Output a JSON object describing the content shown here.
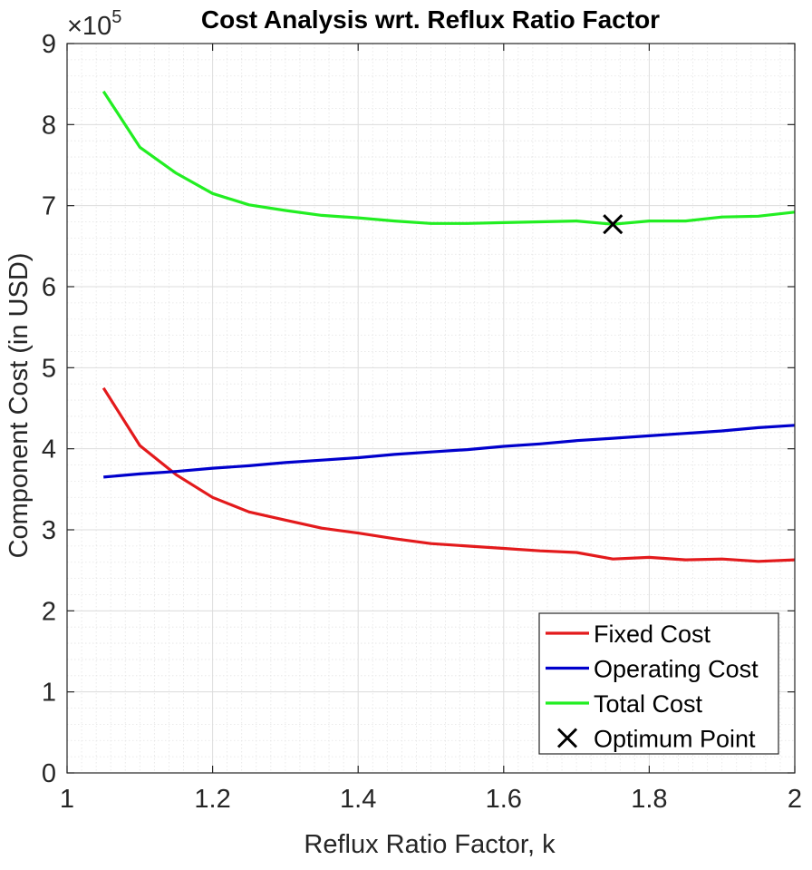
{
  "chart_data": {
    "type": "line",
    "title": "Cost Analysis wrt. Reflux Ratio Factor",
    "xlabel": "Reflux Ratio Factor, k",
    "ylabel": "Component Cost (in USD)",
    "y_exponent_label": "×10",
    "y_exponent_power": "5",
    "xlim": [
      1,
      2
    ],
    "ylim": [
      0,
      9
    ],
    "x_ticks": [
      "1",
      "1.2",
      "1.4",
      "1.6",
      "1.8",
      "2"
    ],
    "y_ticks": [
      "0",
      "1",
      "2",
      "3",
      "4",
      "5",
      "6",
      "7",
      "8",
      "9"
    ],
    "grid": true,
    "minor_grid": true,
    "legend_position": "bottom-right",
    "x": [
      1.05,
      1.1,
      1.15,
      1.2,
      1.25,
      1.3,
      1.35,
      1.4,
      1.45,
      1.5,
      1.55,
      1.6,
      1.65,
      1.7,
      1.75,
      1.8,
      1.85,
      1.9,
      1.95,
      2.0
    ],
    "series": [
      {
        "name": "Fixed Cost",
        "color": "#e31a1c",
        "values": [
          4.75,
          4.04,
          3.68,
          3.4,
          3.22,
          3.12,
          3.02,
          2.96,
          2.89,
          2.83,
          2.8,
          2.77,
          2.74,
          2.72,
          2.64,
          2.66,
          2.63,
          2.64,
          2.61,
          2.63
        ]
      },
      {
        "name": "Operating Cost",
        "color": "#0000cc",
        "values": [
          3.65,
          3.69,
          3.72,
          3.76,
          3.79,
          3.83,
          3.86,
          3.89,
          3.93,
          3.96,
          3.99,
          4.03,
          4.06,
          4.1,
          4.13,
          4.16,
          4.19,
          4.22,
          4.26,
          4.29
        ]
      },
      {
        "name": "Total Cost",
        "color": "#22ee22",
        "values": [
          8.41,
          7.72,
          7.4,
          7.15,
          7.01,
          6.94,
          6.88,
          6.85,
          6.81,
          6.78,
          6.78,
          6.79,
          6.8,
          6.81,
          6.77,
          6.81,
          6.81,
          6.86,
          6.87,
          6.92
        ]
      }
    ],
    "optimum_point": {
      "name": "Optimum Point",
      "x": 1.75,
      "y": 6.77,
      "marker": "x",
      "color": "#000000"
    }
  }
}
